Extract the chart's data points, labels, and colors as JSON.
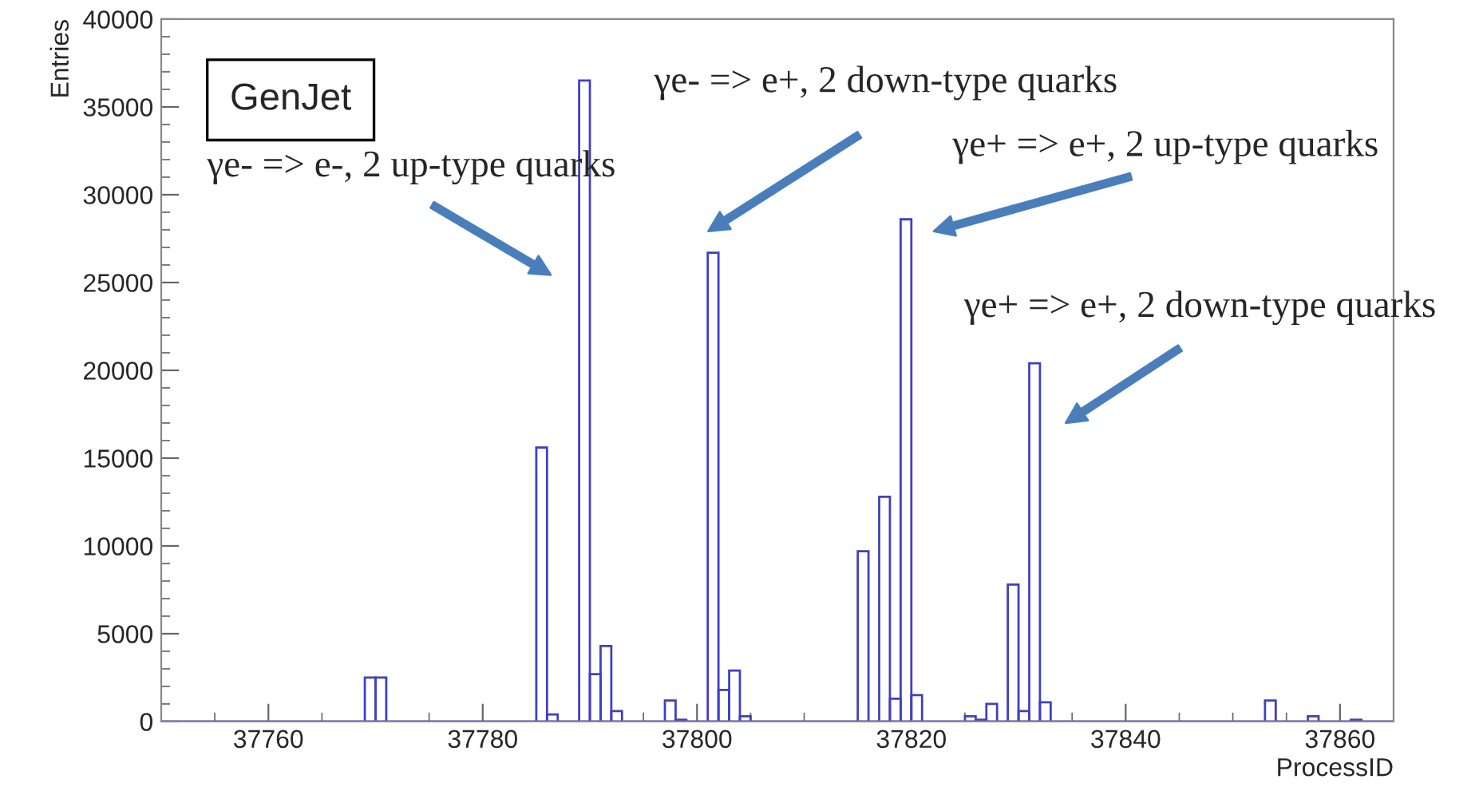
{
  "chart_data": {
    "type": "histogram",
    "xlabel": "ProcessID",
    "ylabel": "Entries",
    "bins": [
      37750,
      37751,
      37752,
      37753,
      37754,
      37755,
      37756,
      37757,
      37758,
      37759,
      37760,
      37761,
      37762,
      37763,
      37764,
      37765,
      37766,
      37767,
      37768,
      37769,
      37770,
      37771,
      37772,
      37773,
      37774,
      37775,
      37776,
      37777,
      37778,
      37779,
      37780,
      37781,
      37782,
      37783,
      37784,
      37785,
      37786,
      37787,
      37788,
      37789,
      37790,
      37791,
      37792,
      37793,
      37794,
      37795,
      37796,
      37797,
      37798,
      37799,
      37800,
      37801,
      37802,
      37803,
      37804,
      37805,
      37806,
      37807,
      37808,
      37809,
      37810,
      37811,
      37812,
      37813,
      37814,
      37815,
      37816,
      37817,
      37818,
      37819,
      37820,
      37821,
      37822,
      37823,
      37824,
      37825,
      37826,
      37827,
      37828,
      37829,
      37830,
      37831,
      37832,
      37833,
      37834,
      37835,
      37836,
      37837,
      37838,
      37839,
      37840,
      37841,
      37842,
      37843,
      37844,
      37845,
      37846,
      37847,
      37848,
      37849,
      37850,
      37851,
      37852,
      37853,
      37854,
      37855,
      37856,
      37857,
      37858,
      37859,
      37860,
      37861,
      37862,
      37863,
      37864,
      37865
    ],
    "values": [
      0,
      0,
      0,
      0,
      0,
      0,
      0,
      0,
      0,
      0,
      0,
      0,
      0,
      0,
      0,
      0,
      0,
      0,
      0,
      2500,
      2500,
      0,
      0,
      0,
      0,
      0,
      0,
      0,
      0,
      0,
      0,
      0,
      0,
      0,
      0,
      15600,
      400,
      0,
      0,
      36500,
      2700,
      4300,
      600,
      0,
      0,
      0,
      0,
      1200,
      100,
      0,
      0,
      26700,
      1800,
      2900,
      300,
      0,
      0,
      0,
      0,
      0,
      0,
      0,
      0,
      0,
      0,
      9700,
      0,
      12800,
      1300,
      28600,
      1500,
      0,
      0,
      0,
      0,
      300,
      100,
      1000,
      0,
      7800,
      600,
      20400,
      1100,
      0,
      0,
      0,
      0,
      0,
      0,
      0,
      0,
      0,
      0,
      0,
      0,
      0,
      0,
      0,
      0,
      0,
      0,
      0,
      0,
      1200,
      0,
      0,
      0,
      300,
      0,
      0,
      0,
      100,
      0,
      0,
      0
    ],
    "color": "#4040c0",
    "xlim": [
      37750,
      37865
    ],
    "xticks": [
      37760,
      37780,
      37800,
      37820,
      37840,
      37860
    ],
    "ylim": [
      0,
      40000
    ],
    "yticks": [
      0,
      5000,
      10000,
      15000,
      20000,
      25000,
      30000,
      35000,
      40000
    ],
    "grid": false,
    "annotations": [
      "GenJet",
      "γe- => e-, 2 up-type quarks",
      "γe- => e+, 2 down-type quarks",
      "γe+ => e+, 2 up-type quarks",
      "γe+ => e+, 2 down-type quarks"
    ]
  }
}
